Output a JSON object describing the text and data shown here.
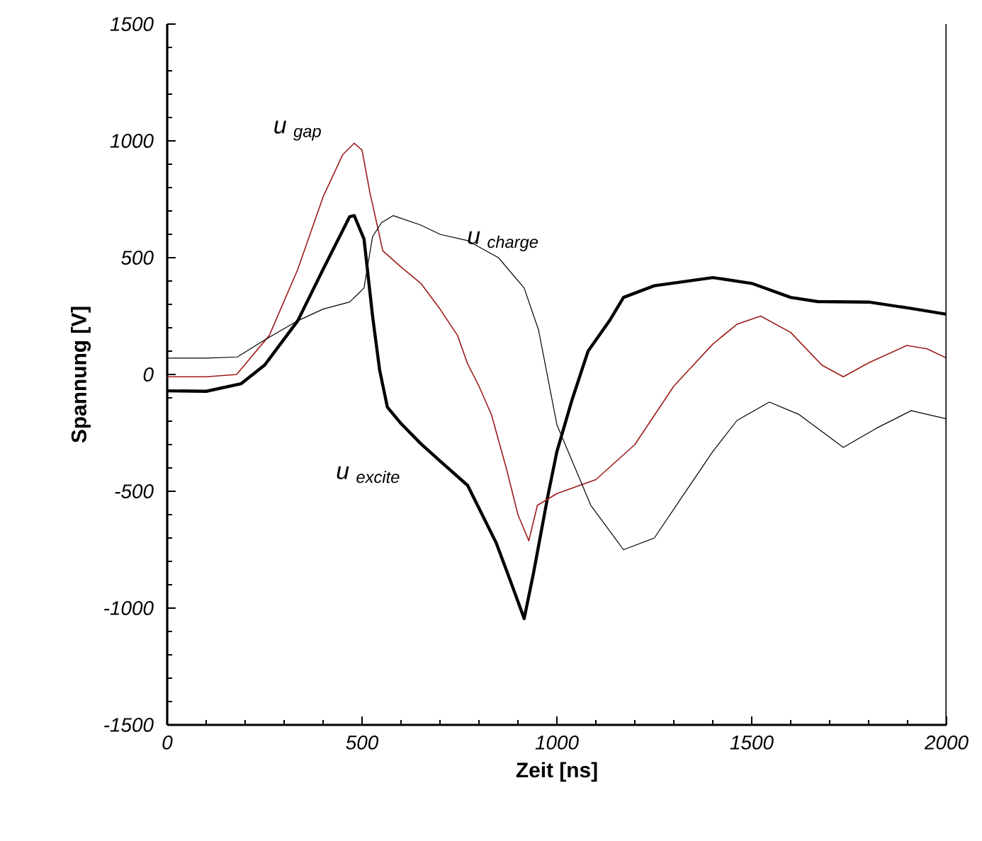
{
  "chart_data": {
    "type": "line",
    "xlabel": "Zeit [ns]",
    "ylabel": "Spannung [V]",
    "xlim": [
      0,
      2000
    ],
    "ylim": [
      -1500,
      1500
    ],
    "xticks": [
      0,
      500,
      1000,
      1500,
      2000
    ],
    "yticks": [
      -1500,
      -1000,
      -500,
      0,
      500,
      1000,
      1500
    ],
    "grid": false,
    "marker": "none",
    "line_style": "solid",
    "series": [
      {
        "name": "u $_{excite}$",
        "color": "#000000",
        "x": [
          0,
          100,
          189,
          250,
          335,
          400,
          468,
          480,
          505,
          527,
          545,
          565,
          600,
          650,
          700,
          771,
          844,
          880,
          916,
          940,
          977,
          1000,
          1038,
          1080,
          1135,
          1171,
          1250,
          1400,
          1500,
          1600,
          1669,
          1800,
          1900,
          2000
        ],
        "values": [
          -70,
          -72,
          -40,
          40,
          230,
          450,
          675,
          680,
          580,
          250,
          20,
          -140,
          -210,
          -295,
          -370,
          -475,
          -720,
          -880,
          -1045,
          -850,
          -518,
          -330,
          -113,
          100,
          230,
          330,
          380,
          415,
          390,
          330,
          312,
          310,
          285,
          258
        ]
      },
      {
        "name": "u $_{gap}$",
        "color": "#9b1b1b",
        "x": [
          0,
          100,
          178,
          262,
          335,
          400,
          450,
          480,
          500,
          520,
          542,
          553,
          600,
          651,
          700,
          745,
          771,
          800,
          832,
          870,
          900,
          928,
          950,
          1000,
          1100,
          1200,
          1300,
          1400,
          1462,
          1523,
          1600,
          1680,
          1735,
          1800,
          1898,
          1950,
          2000
        ],
        "values": [
          -10,
          -10,
          0,
          167,
          450,
          760,
          940,
          990,
          960,
          780,
          615,
          530,
          460,
          390,
          280,
          167,
          45,
          -50,
          -172,
          -400,
          -600,
          -712,
          -560,
          -510,
          -450,
          -300,
          -50,
          130,
          215,
          250,
          180,
          40,
          -10,
          50,
          124,
          110,
          70
        ]
      },
      {
        "name": "u $_{charge}$",
        "color": "#000000",
        "x": [
          0,
          100,
          180,
          250,
          335,
          400,
          468,
          505,
          527,
          550,
          580,
          650,
          700,
          771,
          850,
          916,
          953,
          1000,
          1087,
          1171,
          1250,
          1316,
          1400,
          1462,
          1545,
          1620,
          1735,
          1820,
          1909,
          2000
        ],
        "values": [
          70,
          70,
          75,
          148,
          230,
          280,
          310,
          370,
          590,
          650,
          680,
          640,
          600,
          573,
          500,
          370,
          190,
          -215,
          -560,
          -750,
          -700,
          -537,
          -330,
          -197,
          -118,
          -170,
          -312,
          -230,
          -155,
          -190
        ]
      }
    ]
  }
}
